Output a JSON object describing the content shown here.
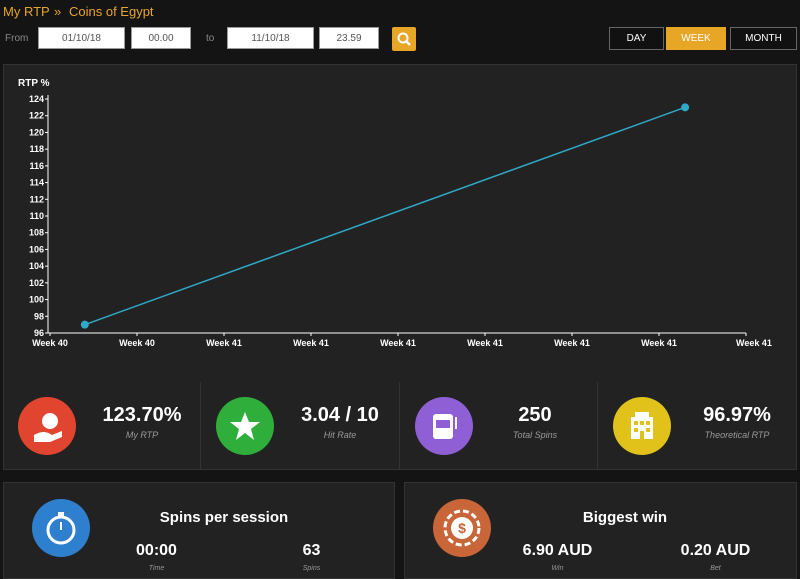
{
  "breadcrumb": {
    "home": "My RTP",
    "separator": "»",
    "game": "Coins of Egypt"
  },
  "filters": {
    "from_label": "From",
    "from_date": "01/10/18",
    "from_time": "00.00",
    "to_label": "to",
    "to_date": "11/10/18",
    "to_time": "23.59"
  },
  "period_buttons": [
    {
      "label": "DAY",
      "active": false
    },
    {
      "label": "WEEK",
      "active": true
    },
    {
      "label": "MONTH",
      "active": false
    }
  ],
  "chart_data": {
    "type": "line",
    "y_label": "RTP %",
    "xlim": [
      0,
      8
    ],
    "xticks": [
      {
        "value": 0,
        "label": "Week 40"
      },
      {
        "value": 1,
        "label": "Week 40"
      },
      {
        "value": 2,
        "label": "Week 41"
      },
      {
        "value": 3,
        "label": "Week 41"
      },
      {
        "value": 4,
        "label": "Week 41"
      },
      {
        "value": 5,
        "label": "Week 41"
      },
      {
        "value": 6,
        "label": "Week 41"
      },
      {
        "value": 7,
        "label": "Week 41"
      },
      {
        "value": 8,
        "label": "Week 41"
      }
    ],
    "series": [
      {
        "color": "#2fa9c9",
        "x": [
          0.4,
          7.3
        ],
        "values": [
          97,
          123
        ]
      }
    ],
    "ylim": [
      96,
      124
    ],
    "yticks": [
      96,
      98,
      100,
      102,
      104,
      106,
      108,
      110,
      112,
      114,
      116,
      118,
      120,
      122,
      124
    ]
  },
  "stats": [
    {
      "value": "123.70%",
      "label": "My RTP"
    },
    {
      "value": "3.04 / 10",
      "label": "Hit Rate"
    },
    {
      "value": "250",
      "label": "Total Spins"
    },
    {
      "value": "96.97%",
      "label": "Theoretical RTP"
    }
  ],
  "panels": [
    {
      "title": "Spins per session",
      "items": [
        {
          "value": "00:00",
          "label": "Time"
        },
        {
          "value": "63",
          "label": "Spins"
        }
      ]
    },
    {
      "title": "Biggest win",
      "items": [
        {
          "value": "6.90 AUD",
          "label": "Win"
        },
        {
          "value": "0.20 AUD",
          "label": "Bet"
        }
      ]
    }
  ]
}
